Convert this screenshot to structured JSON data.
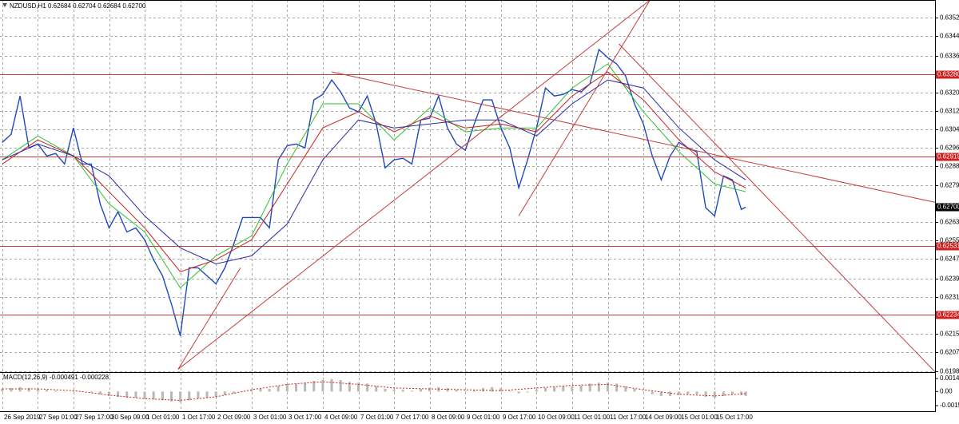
{
  "chart_data": [
    {
      "type": "line",
      "title": "NZDUSD,H1  0.62684 0.62704 0.62684 0.62700",
      "xlim": [
        -1,
        419
      ],
      "ylim": [
        0.61982,
        0.63602
      ],
      "grid": true,
      "xticks": [
        {
          "value": 0,
          "label": "26 Sep 2019"
        },
        {
          "value": 16,
          "label": "27 Sep 01:00"
        },
        {
          "value": 32,
          "label": "27 Sep 17:00"
        },
        {
          "value": 48,
          "label": "30 Sep 09:00"
        },
        {
          "value": 64,
          "label": "1 Oct 01:00"
        },
        {
          "value": 80,
          "label": "1 Oct 17:00"
        },
        {
          "value": 96,
          "label": "2 Oct 09:00"
        },
        {
          "value": 112,
          "label": "3 Oct 01:00"
        },
        {
          "value": 128,
          "label": "3 Oct 17:00"
        },
        {
          "value": 144,
          "label": "4 Oct 09:00"
        },
        {
          "value": 160,
          "label": "7 Oct 01:00"
        },
        {
          "value": 176,
          "label": "7 Oct 17:00"
        },
        {
          "value": 192,
          "label": "8 Oct 09:00"
        },
        {
          "value": 208,
          "label": "9 Oct 01:00"
        },
        {
          "value": 224,
          "label": "9 Oct 17:00"
        },
        {
          "value": 240,
          "label": "10 Oct 09:00"
        },
        {
          "value": 256,
          "label": "11 Oct 01:00"
        },
        {
          "value": 272,
          "label": "11 Oct 17:00"
        },
        {
          "value": 288,
          "label": "14 Oct 09:00"
        },
        {
          "value": 304,
          "label": "15 Oct 01:00"
        },
        {
          "value": 320,
          "label": "15 Oct 17:00"
        }
      ],
      "yticks": [
        0.63525,
        0.63445,
        {
          "value": 0.6336,
          "label": "0.63360"
        },
        {
          "value": 0.632,
          "label": "0.63200"
        },
        {
          "value": 0.6312,
          "label": "0.63120"
        },
        {
          "value": 0.6304,
          "label": "0.63040"
        },
        {
          "value": 0.6296,
          "label": "0.62960"
        },
        {
          "value": 0.6288,
          "label": "0.62880"
        },
        0.62795,
        0.62635,
        0.62555,
        0.62475,
        {
          "value": 0.6239,
          "label": "0.62390"
        },
        {
          "value": 0.6231,
          "label": "0.62310"
        },
        {
          "value": 0.6215,
          "label": "0.62150"
        },
        {
          "value": 0.6207,
          "label": "0.62070"
        },
        0.61985
      ],
      "levels": [
        {
          "value": 0.6328,
          "label": "0.63280"
        },
        {
          "value": 0.62919,
          "label": "0.62919"
        },
        {
          "value": 0.62531,
          "label": "0.62531"
        },
        {
          "value": 0.62234,
          "label": "0.62234"
        }
      ],
      "price_label": {
        "value": 0.627,
        "label": "0.62700"
      },
      "series": [
        {
          "color": "#1f49bf",
          "x": [
            0,
            4,
            8,
            12,
            16,
            20,
            24,
            28,
            32,
            36,
            40,
            44,
            48,
            52,
            56,
            60,
            64,
            68,
            72,
            76,
            80,
            84,
            88,
            92,
            96,
            100,
            104,
            108,
            112,
            116,
            120,
            124,
            128,
            132,
            136,
            140,
            144,
            148,
            152,
            156,
            160,
            164,
            168,
            172,
            176,
            180,
            184,
            188,
            192,
            196,
            200,
            204,
            208,
            212,
            216,
            220,
            224,
            228,
            232,
            236,
            240,
            244,
            248,
            252,
            256,
            260,
            264,
            268,
            272,
            276,
            280,
            284,
            288,
            292,
            296,
            300,
            304,
            308,
            312,
            316,
            320,
            324,
            328,
            332,
            334
          ],
          "values": [
            0.62982,
            0.63017,
            0.63184,
            0.62958,
            0.62975,
            0.62923,
            0.62934,
            0.62888,
            0.63045,
            0.62888,
            0.62888,
            0.62714,
            0.6261,
            0.6268,
            0.62592,
            0.6261,
            0.62558,
            0.62471,
            0.62401,
            0.62279,
            0.6214,
            0.62436,
            0.62436,
            0.62401,
            0.62366,
            0.62436,
            0.6254,
            0.62655,
            0.62655,
            0.62655,
            0.6261,
            0.62906,
            0.62968,
            0.62975,
            0.62958,
            0.63167,
            0.63191,
            0.63254,
            0.63202,
            0.63132,
            0.63115,
            0.63184,
            0.63062,
            0.62871,
            0.62906,
            0.62913,
            0.62888,
            0.6308,
            0.63087,
            0.63184,
            0.63045,
            0.62975,
            0.62948,
            0.63062,
            0.63167,
            0.63167,
            0.63045,
            0.62958,
            0.62784,
            0.62906,
            0.63045,
            0.63219,
            0.63184,
            0.63191,
            0.63212,
            0.63202,
            0.63237,
            0.63386,
            0.63351,
            0.63324,
            0.63271,
            0.6315,
            0.63062,
            0.62923,
            0.62819,
            0.62923,
            0.62982,
            0.62958,
            0.62941,
            0.62697,
            0.62662,
            0.62836,
            0.62819,
            0.6269,
            0.627
          ]
        },
        {
          "color": "#2fbf2f",
          "x": [
            0,
            16,
            32,
            48,
            64,
            80,
            96,
            112,
            128,
            144,
            160,
            176,
            192,
            208,
            224,
            240,
            256,
            272,
            288,
            304,
            320,
            334
          ],
          "values": [
            0.62906,
            0.6301,
            0.62923,
            0.62714,
            0.62592,
            0.62349,
            0.62488,
            0.62575,
            0.62888,
            0.6315,
            0.6315,
            0.62993,
            0.63132,
            0.63028,
            0.63045,
            0.63045,
            0.63219,
            0.63324,
            0.63115,
            0.62941,
            0.62801,
            0.62767
          ]
        },
        {
          "color": "#c82020",
          "x": [
            0,
            16,
            32,
            48,
            64,
            80,
            96,
            112,
            128,
            144,
            160,
            176,
            192,
            208,
            224,
            240,
            256,
            272,
            288,
            304,
            320,
            334
          ],
          "values": [
            0.62888,
            0.62993,
            0.62923,
            0.62767,
            0.6261,
            0.62419,
            0.62471,
            0.62558,
            0.62801,
            0.63045,
            0.63115,
            0.63028,
            0.63097,
            0.63045,
            0.63062,
            0.63028,
            0.63184,
            0.63289,
            0.63167,
            0.62993,
            0.62854,
            0.62784
          ]
        },
        {
          "color": "#2a2aa8",
          "x": [
            0,
            16,
            32,
            48,
            64,
            80,
            96,
            112,
            128,
            144,
            160,
            176,
            192,
            208,
            224,
            240,
            256,
            272,
            288,
            304,
            320,
            334
          ],
          "values": [
            0.62906,
            0.62975,
            0.62923,
            0.62836,
            0.62662,
            0.62523,
            0.62453,
            0.62488,
            0.62627,
            0.62906,
            0.6308,
            0.63045,
            0.63062,
            0.6308,
            0.6308,
            0.6301,
            0.6315,
            0.63254,
            0.63219,
            0.63045,
            0.62906,
            0.62819
          ]
        }
      ],
      "trendlines": [
        {
          "color": "#c83a3a",
          "x": [
            79,
            291
          ],
          "values": [
            0.61994,
            0.63602
          ]
        },
        {
          "color": "#c83a3a",
          "x": [
            79,
            107
          ],
          "values": [
            0.61994,
            0.62436
          ]
        },
        {
          "color": "#c83a3a",
          "x": [
            232,
            291
          ],
          "values": [
            0.62662,
            0.63602
          ]
        },
        {
          "color": "#c83a3a",
          "x": [
            148,
            419
          ],
          "values": [
            0.63289,
            0.62721
          ]
        },
        {
          "color": "#c83a3a",
          "x": [
            277,
            419
          ],
          "values": [
            0.63411,
            0.61983
          ]
        }
      ]
    },
    {
      "type": "bar",
      "title": "MACD(12,26,9) -0.000491 -0.000228",
      "color": "#b8b8b8",
      "xlim": [
        -1,
        419
      ],
      "ylim": [
        -0.00222,
        0.0021
      ],
      "yticks": [
        0.00147,
        {
          "value": 0,
          "label": "0.00"
        },
        -0.00159
      ],
      "x": [
        0,
        4,
        8,
        12,
        16,
        20,
        24,
        28,
        32,
        36,
        40,
        44,
        48,
        52,
        56,
        60,
        64,
        68,
        72,
        76,
        80,
        84,
        88,
        92,
        96,
        100,
        104,
        108,
        112,
        116,
        120,
        124,
        128,
        132,
        136,
        140,
        144,
        148,
        152,
        156,
        160,
        164,
        168,
        172,
        176,
        180,
        184,
        188,
        192,
        196,
        200,
        204,
        208,
        212,
        216,
        220,
        224,
        228,
        232,
        236,
        240,
        244,
        248,
        252,
        256,
        260,
        264,
        268,
        272,
        276,
        280,
        284,
        288,
        292,
        296,
        300,
        304,
        308,
        312,
        316,
        320,
        324,
        328,
        332,
        334
      ],
      "values": [
        0.0003,
        0.0004,
        0.0005,
        0.0004,
        0.0003,
        0.0002,
        0.0001,
        0,
        0.0001,
        0,
        -0.0001,
        -0.0003,
        -0.0005,
        -0.0006,
        -0.0007,
        -0.0007,
        -0.0008,
        -0.0009,
        -0.001,
        -0.0011,
        -0.0012,
        -0.001,
        -0.0008,
        -0.0007,
        -0.0006,
        -0.0004,
        -0.0002,
        0,
        0.0002,
        0.0003,
        0.0003,
        0.0006,
        0.0008,
        0.0009,
        0.001,
        0.0012,
        0.0013,
        0.0014,
        0.0013,
        0.0011,
        0.001,
        0.0009,
        0.0006,
        0.0003,
        0.0002,
        0.0002,
        0.0001,
        0.0003,
        0.0004,
        0.0005,
        0.0004,
        0.0002,
        0.0001,
        0.0002,
        0.0004,
        0.0005,
        0.0004,
        0.0001,
        -0.0002,
        -0.0001,
        0.0002,
        0.0004,
        0.0005,
        0.0006,
        0.0006,
        0.0007,
        0.0009,
        0.001,
        0.001,
        0.0009,
        0.0006,
        0.0003,
        0,
        -0.0003,
        -0.0005,
        -0.0005,
        -0.0004,
        -0.0003,
        -0.0003,
        -0.0006,
        -0.0007,
        -0.0005,
        -0.0003,
        -0.0004,
        -0.000491
      ],
      "signal": {
        "color": "#d02020",
        "x": [
          0,
          16,
          32,
          48,
          64,
          80,
          96,
          112,
          128,
          144,
          160,
          176,
          192,
          208,
          224,
          240,
          256,
          272,
          288,
          304,
          320,
          334
        ],
        "values": [
          0.0003,
          0.0003,
          0.0001,
          -0.0004,
          -0.0008,
          -0.001,
          -0.0006,
          0.0002,
          0.0008,
          0.0011,
          0.0008,
          0.0004,
          0.0003,
          0.0002,
          0.0001,
          0.0004,
          0.0007,
          0.0008,
          0.0002,
          -0.0003,
          -0.0005,
          -0.000228
        ]
      }
    }
  ]
}
